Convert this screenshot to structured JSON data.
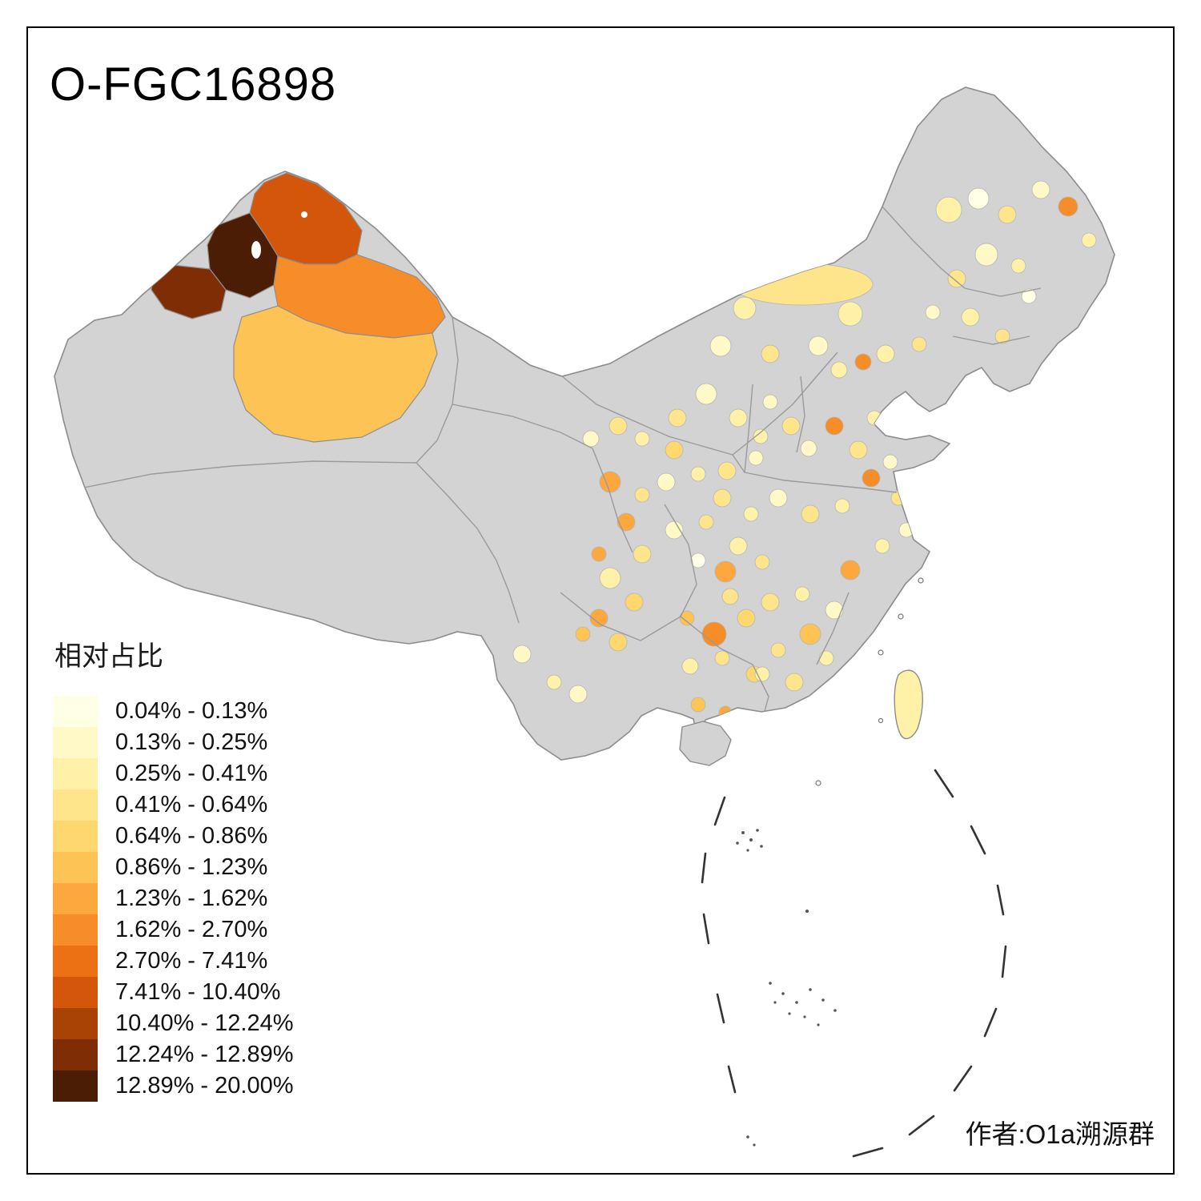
{
  "title": "O-FGC16898",
  "legend": {
    "title": "相对占比",
    "items": [
      {
        "label": "0.04% - 0.13%",
        "color": "#FFFFE5"
      },
      {
        "label": "0.13% - 0.25%",
        "color": "#FFF9C7"
      },
      {
        "label": "0.25% - 0.41%",
        "color": "#FFF1A8"
      },
      {
        "label": "0.41% - 0.64%",
        "color": "#FEE58B"
      },
      {
        "label": "0.64% - 0.86%",
        "color": "#FED76E"
      },
      {
        "label": "0.86% - 1.23%",
        "color": "#FEC355"
      },
      {
        "label": "1.23% - 1.62%",
        "color": "#FDA73F"
      },
      {
        "label": "1.62% - 2.70%",
        "color": "#F78D28"
      },
      {
        "label": "2.70% - 7.41%",
        "color": "#EC7114"
      },
      {
        "label": "7.41% - 10.40%",
        "color": "#D4560A"
      },
      {
        "label": "10.40% - 12.24%",
        "color": "#A94205"
      },
      {
        "label": "12.24% - 12.89%",
        "color": "#7F2D05"
      },
      {
        "label": "12.89% - 20.00%",
        "color": "#4C1D05"
      }
    ]
  },
  "credit": "作者:O1a溯源群",
  "map": {
    "type": "choropleth",
    "region": "China prefectures",
    "no_data_color": "#D3D3D3",
    "border_color": "#8C8C8C",
    "background": "#FFFFFF"
  }
}
